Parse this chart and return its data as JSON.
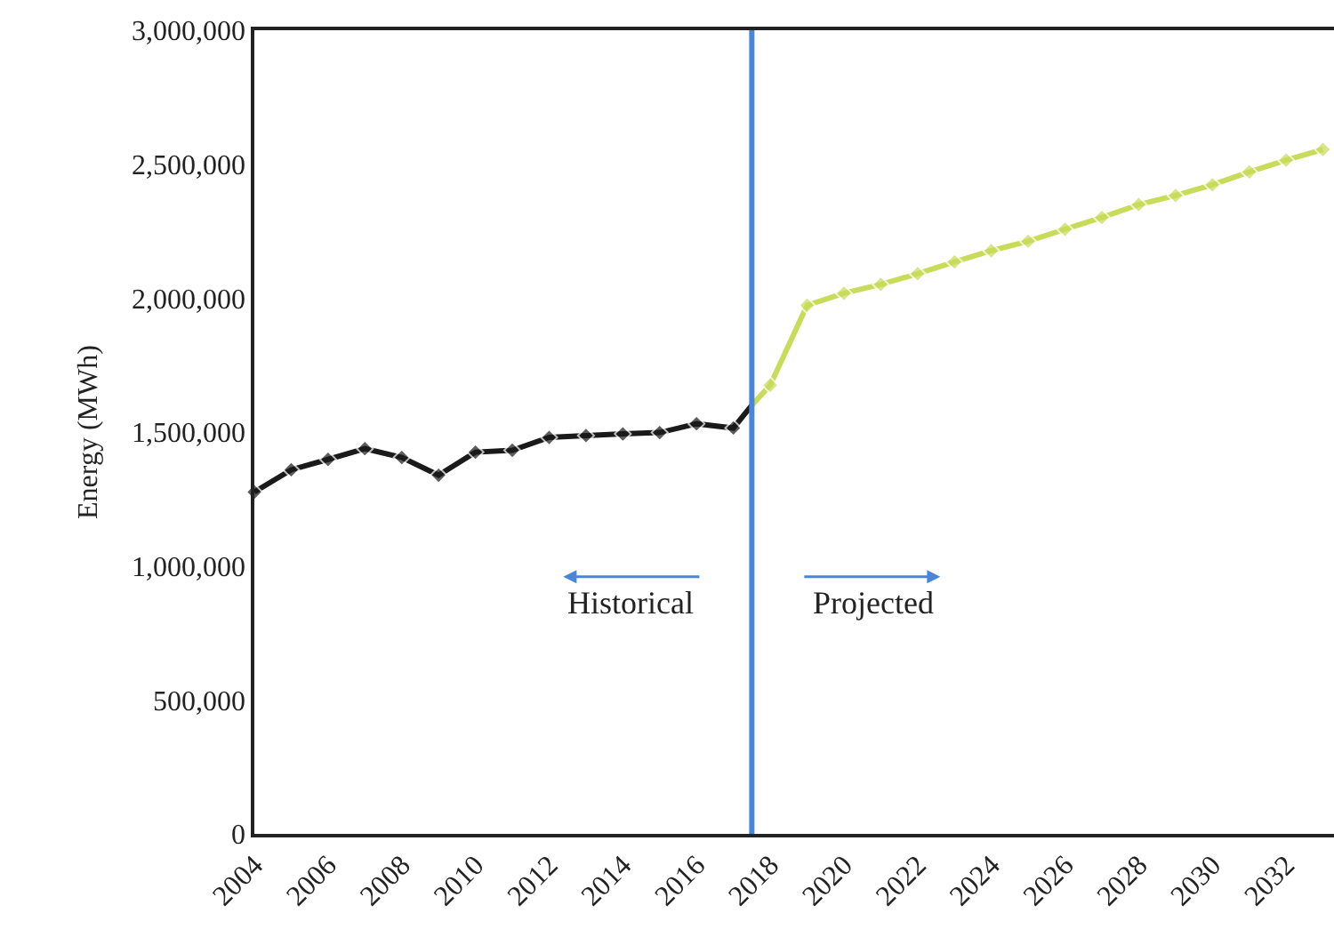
{
  "chart_data": {
    "type": "line",
    "ylabel": "Energy (MWh)",
    "xlim": [
      2004,
      2033.3
    ],
    "xticks": [
      2004,
      2006,
      2008,
      2010,
      2012,
      2014,
      2016,
      2018,
      2020,
      2022,
      2024,
      2026,
      2028,
      2030,
      2032
    ],
    "ylim": [
      0,
      3000000
    ],
    "yticks": [
      {
        "value": 0,
        "label": "0"
      },
      {
        "value": 500000,
        "label": "500,000"
      },
      {
        "value": 1000000,
        "label": "1,000,000"
      },
      {
        "value": 1500000,
        "label": "1,500,000"
      },
      {
        "value": 2000000,
        "label": "2,000,000"
      },
      {
        "value": 2500000,
        "label": "2,500,000"
      },
      {
        "value": 3000000,
        "label": "3,000,000"
      }
    ],
    "series": [
      {
        "color": "#1a1a1a",
        "x": [
          2004,
          2005,
          2006,
          2007,
          2008,
          2009,
          2010,
          2011,
          2012,
          2013,
          2014,
          2015,
          2016,
          2017,
          2017.5
        ],
        "values": [
          1276000,
          1359000,
          1398000,
          1438000,
          1405000,
          1339000,
          1425000,
          1432000,
          1480000,
          1487000,
          1493000,
          1498000,
          1531000,
          1515000,
          1600000
        ]
      },
      {
        "color": "#c8dc5a",
        "x": [
          2017.5,
          2018,
          2019,
          2020,
          2021,
          2022,
          2023,
          2024,
          2025,
          2026,
          2027,
          2028,
          2029,
          2030,
          2031,
          2032,
          2033
        ],
        "values": [
          1600000,
          1675000,
          1973000,
          2018000,
          2051000,
          2091000,
          2135000,
          2177000,
          2212000,
          2257000,
          2301000,
          2349000,
          2383000,
          2423000,
          2471000,
          2515000,
          2555000
        ]
      }
    ],
    "marker": "diamond",
    "ref_lines": [
      {
        "axis": "x",
        "value": 2017.5,
        "color": "#4a86d8"
      }
    ],
    "annotations": [
      "Historical",
      "Projected"
    ]
  }
}
